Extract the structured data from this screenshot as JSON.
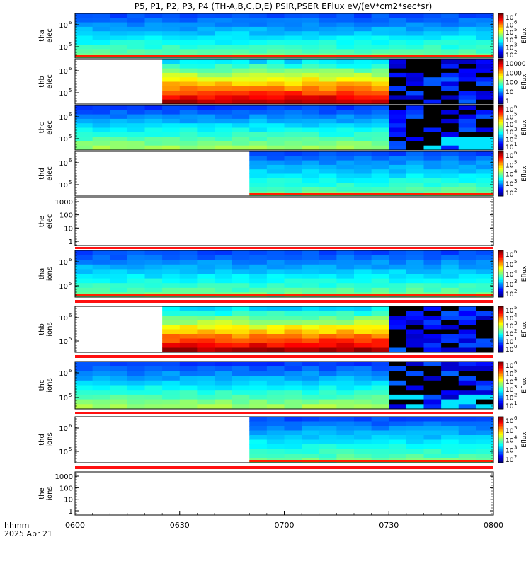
{
  "chart_data": {
    "type": "heatmap",
    "title": "P5, P1, P2, P3, P4 (TH-A,B,C,D,E) PSIR,PSER EFlux eV/(eV*cm2*sec*sr)",
    "xlabel_line1": "hhmm",
    "xlabel_line2": "2025 Apr 21",
    "x_ticks": [
      "0600",
      "0630",
      "0700",
      "0730",
      "0800"
    ],
    "xlim_minutes": [
      0,
      120
    ],
    "colorbar_label": "Eflux",
    "panels": [
      {
        "id": "tha_elec",
        "ylabel": [
          "tha",
          "elec"
        ],
        "yticks": [
          {
            "label": "10",
            "exp": "6"
          },
          {
            "label": "10",
            "exp": "5"
          }
        ],
        "data_start": 0,
        "style": "full",
        "colorbar": [
          {
            "label": "10",
            "exp": "7"
          },
          {
            "label": "10",
            "exp": "6"
          },
          {
            "label": "10",
            "exp": "5"
          },
          {
            "label": "10",
            "exp": "4"
          },
          {
            "label": "10",
            "exp": "3"
          },
          {
            "label": "10",
            "exp": "2"
          }
        ]
      },
      {
        "id": "thb_elec",
        "ylabel": [
          "thb",
          "elec"
        ],
        "yticks": [
          {
            "label": "10",
            "exp": "6"
          },
          {
            "label": "10",
            "exp": "5"
          }
        ],
        "data_start": 25,
        "noisy_from": 92,
        "style": "hot",
        "colorbar": [
          {
            "label": "10000",
            "exp": ""
          },
          {
            "label": "1000",
            "exp": ""
          },
          {
            "label": "100",
            "exp": ""
          },
          {
            "label": "10",
            "exp": ""
          },
          {
            "label": "1",
            "exp": ""
          }
        ]
      },
      {
        "id": "thc_elec",
        "ylabel": [
          "thc",
          "elec"
        ],
        "yticks": [
          {
            "label": "10",
            "exp": "6"
          },
          {
            "label": "10",
            "exp": "5"
          }
        ],
        "data_start": 0,
        "noisy_from": 92,
        "style": "cool",
        "colorbar": [
          {
            "label": "10",
            "exp": "6"
          },
          {
            "label": "10",
            "exp": "5"
          },
          {
            "label": "10",
            "exp": "4"
          },
          {
            "label": "10",
            "exp": "3"
          },
          {
            "label": "10",
            "exp": "2"
          },
          {
            "label": "10",
            "exp": "1"
          }
        ]
      },
      {
        "id": "thd_elec",
        "ylabel": [
          "thd",
          "elec"
        ],
        "yticks": [
          {
            "label": "10",
            "exp": "6"
          },
          {
            "label": "10",
            "exp": "5"
          }
        ],
        "data_start": 48,
        "style": "full",
        "colorbar": [
          {
            "label": "10",
            "exp": "6"
          },
          {
            "label": "10",
            "exp": "5"
          },
          {
            "label": "10",
            "exp": "4"
          },
          {
            "label": "10",
            "exp": "3"
          },
          {
            "label": "10",
            "exp": "2"
          }
        ]
      },
      {
        "id": "the_elec",
        "ylabel": [
          "the",
          "elec"
        ],
        "yticks": [
          {
            "label": "1000",
            "exp": ""
          },
          {
            "label": "100",
            "exp": ""
          },
          {
            "label": "10",
            "exp": ""
          },
          {
            "label": "1",
            "exp": ""
          }
        ],
        "data_start": 120,
        "style": "empty",
        "colorbar": []
      },
      {
        "id": "tha_ions",
        "ylabel": [
          "tha",
          "ions"
        ],
        "yticks": [
          {
            "label": "10",
            "exp": "6"
          },
          {
            "label": "10",
            "exp": "5"
          }
        ],
        "data_start": 0,
        "style": "full",
        "colorbar": [
          {
            "label": "10",
            "exp": "6"
          },
          {
            "label": "10",
            "exp": "5"
          },
          {
            "label": "10",
            "exp": "4"
          },
          {
            "label": "10",
            "exp": "3"
          },
          {
            "label": "10",
            "exp": "2"
          }
        ]
      },
      {
        "id": "thb_ions",
        "ylabel": [
          "thb",
          "ions"
        ],
        "yticks": [
          {
            "label": "10",
            "exp": "6"
          },
          {
            "label": "10",
            "exp": "5"
          }
        ],
        "data_start": 25,
        "noisy_from": 92,
        "style": "hot",
        "colorbar": [
          {
            "label": "10",
            "exp": "5"
          },
          {
            "label": "10",
            "exp": "4"
          },
          {
            "label": "10",
            "exp": "3"
          },
          {
            "label": "10",
            "exp": "2"
          },
          {
            "label": "10",
            "exp": "1"
          },
          {
            "label": "10",
            "exp": "0"
          }
        ]
      },
      {
        "id": "thc_ions",
        "ylabel": [
          "thc",
          "ions"
        ],
        "yticks": [
          {
            "label": "10",
            "exp": "6"
          },
          {
            "label": "10",
            "exp": "5"
          }
        ],
        "data_start": 0,
        "noisy_from": 92,
        "style": "cool",
        "colorbar": [
          {
            "label": "10",
            "exp": "6"
          },
          {
            "label": "10",
            "exp": "5"
          },
          {
            "label": "10",
            "exp": "4"
          },
          {
            "label": "10",
            "exp": "3"
          },
          {
            "label": "10",
            "exp": "2"
          },
          {
            "label": "10",
            "exp": "1"
          }
        ]
      },
      {
        "id": "thd_ions",
        "ylabel": [
          "thd",
          "ions"
        ],
        "yticks": [
          {
            "label": "10",
            "exp": "6"
          },
          {
            "label": "10",
            "exp": "5"
          }
        ],
        "data_start": 48,
        "style": "full",
        "colorbar": [
          {
            "label": "10",
            "exp": "6"
          },
          {
            "label": "10",
            "exp": "5"
          },
          {
            "label": "10",
            "exp": "4"
          },
          {
            "label": "10",
            "exp": "3"
          },
          {
            "label": "10",
            "exp": "2"
          }
        ]
      },
      {
        "id": "the_ions",
        "ylabel": [
          "the",
          "ions"
        ],
        "yticks": [
          {
            "label": "1000",
            "exp": ""
          },
          {
            "label": "100",
            "exp": ""
          },
          {
            "label": "10",
            "exp": ""
          },
          {
            "label": "1",
            "exp": ""
          }
        ],
        "data_start": 120,
        "style": "empty",
        "colorbar": []
      }
    ]
  }
}
